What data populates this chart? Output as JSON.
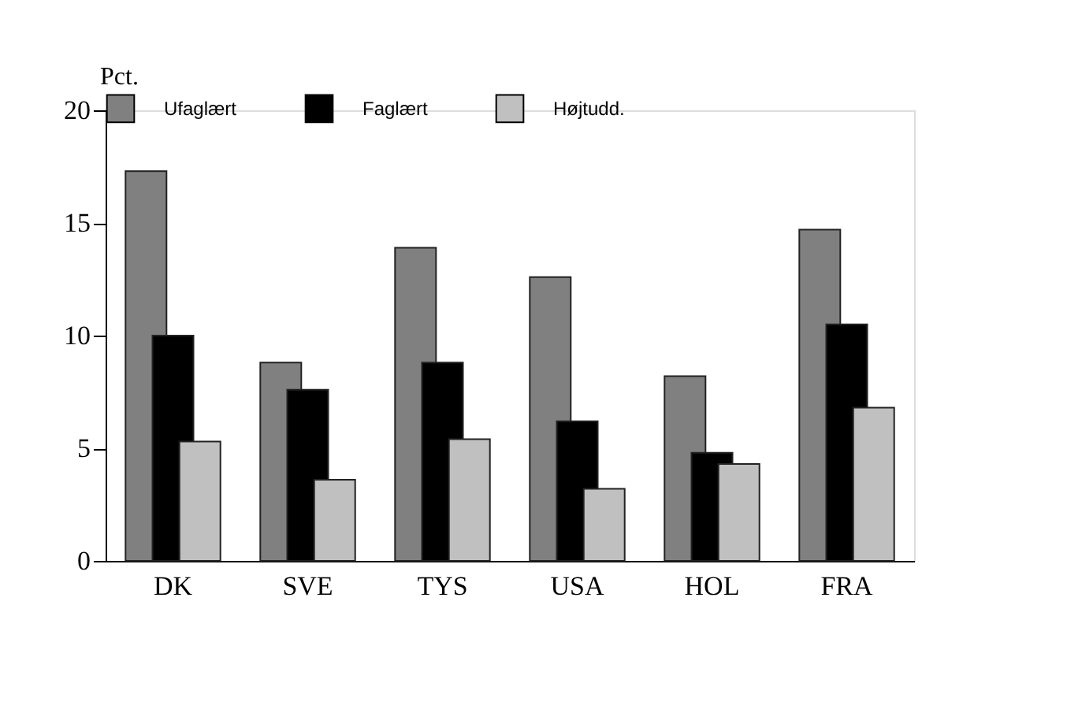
{
  "chart_data": {
    "type": "bar",
    "ylabel": "Pct.",
    "categories": [
      "DK",
      "SVE",
      "TYS",
      "USA",
      "HOL",
      "FRA"
    ],
    "series": [
      {
        "name": "Ufaglært",
        "color": "#808080",
        "values": [
          17.3,
          8.8,
          13.9,
          12.6,
          8.2,
          14.7
        ]
      },
      {
        "name": "Faglært",
        "color": "#000000",
        "values": [
          10.0,
          7.6,
          8.8,
          6.2,
          4.8,
          10.5
        ]
      },
      {
        "name": "Højtudd.",
        "color": "#c0c0c0",
        "values": [
          5.3,
          3.6,
          5.4,
          3.2,
          4.3,
          6.8
        ]
      }
    ],
    "ylim": [
      0,
      20
    ],
    "yticks": [
      0,
      5,
      10,
      15,
      20
    ],
    "grid": false,
    "legend": "top"
  }
}
